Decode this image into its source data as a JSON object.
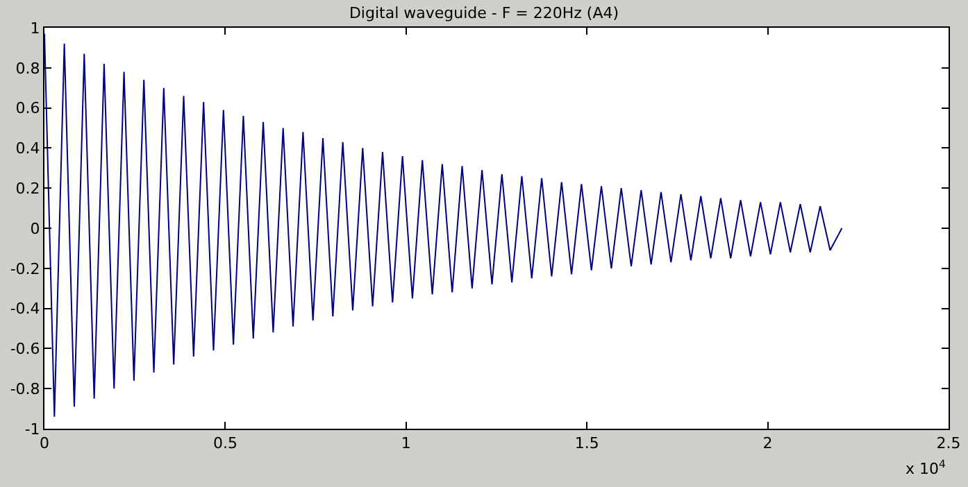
{
  "chart_data": {
    "type": "line",
    "title": "Digital waveguide - F = 220Hz (A4)",
    "x": [
      0,
      0.0275,
      0.055,
      0.0825,
      0.11,
      0.1375,
      0.165,
      0.1925,
      0.22,
      0.2475,
      0.275,
      0.3025,
      0.33,
      0.3575,
      0.385,
      0.4125,
      0.44,
      0.4675,
      0.495,
      0.5225,
      0.55,
      0.5775,
      0.605,
      0.6325,
      0.66,
      0.6875,
      0.715,
      0.7425,
      0.77,
      0.7975,
      0.825,
      0.8525,
      0.88,
      0.9075,
      0.935,
      0.9625,
      0.99,
      1.0175,
      1.045,
      1.0725,
      1.1,
      1.1275,
      1.155,
      1.1825,
      1.21,
      1.2375,
      1.265,
      1.2925,
      1.32,
      1.3475,
      1.375,
      1.4025,
      1.43,
      1.4575,
      1.485,
      1.5125,
      1.54,
      1.5675,
      1.595,
      1.6225,
      1.65,
      1.6775,
      1.705,
      1.7325,
      1.76,
      1.7875,
      1.815,
      1.8425,
      1.87,
      1.8975,
      1.925,
      1.9525,
      1.98,
      2.0075,
      2.035,
      2.0625,
      2.09,
      2.1175,
      2.145,
      2.1725,
      2.205
    ],
    "series": [
      {
        "color": "#000080",
        "values": [
          0.97,
          -0.94,
          0.92,
          -0.89,
          0.87,
          -0.85,
          0.82,
          -0.8,
          0.78,
          -0.76,
          0.74,
          -0.72,
          0.7,
          -0.68,
          0.66,
          -0.64,
          0.63,
          -0.61,
          0.59,
          -0.58,
          0.56,
          -0.55,
          0.53,
          -0.52,
          0.5,
          -0.49,
          0.48,
          -0.46,
          0.45,
          -0.44,
          0.43,
          -0.41,
          0.4,
          -0.39,
          0.38,
          -0.37,
          0.36,
          -0.35,
          0.34,
          -0.33,
          0.32,
          -0.32,
          0.31,
          -0.3,
          0.29,
          -0.28,
          0.27,
          -0.27,
          0.26,
          -0.25,
          0.25,
          -0.24,
          0.23,
          -0.23,
          0.22,
          -0.21,
          0.21,
          -0.2,
          0.2,
          -0.19,
          0.19,
          -0.18,
          0.18,
          -0.17,
          0.17,
          -0.16,
          0.16,
          -0.15,
          0.15,
          -0.15,
          0.14,
          -0.14,
          0.13,
          -0.13,
          0.13,
          -0.12,
          0.12,
          -0.12,
          0.11,
          -0.11,
          0
        ]
      }
    ],
    "xlim": [
      0,
      2.5
    ],
    "xticks": [
      0,
      0.5,
      1,
      1.5,
      2,
      2.5
    ],
    "ylim": [
      -1,
      1
    ],
    "yticks": [
      -1,
      -0.8,
      -0.6,
      -0.4,
      -0.2,
      0,
      0.2,
      0.4,
      0.6,
      0.8,
      1
    ],
    "annotations": [
      "x 10$^{4}$"
    ],
    "grid": false,
    "marker": "none",
    "line_style": "solid"
  }
}
